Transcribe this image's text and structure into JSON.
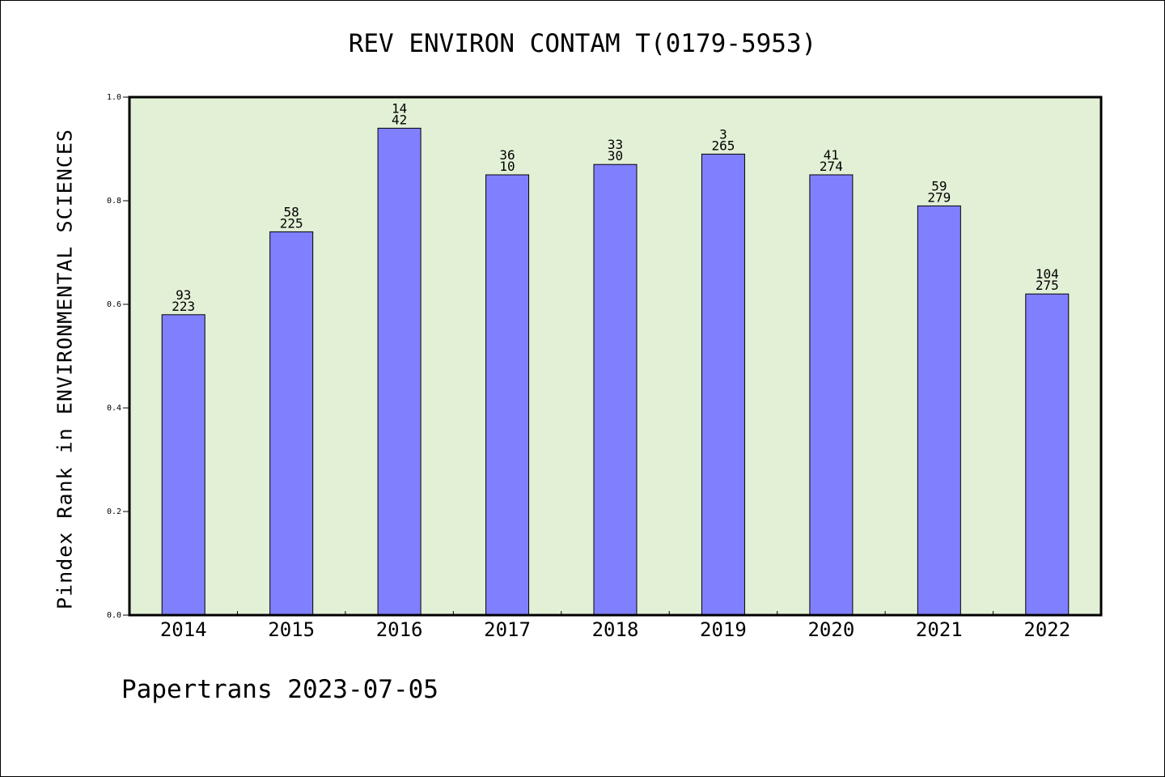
{
  "chart_data": {
    "type": "bar",
    "title": "REV ENVIRON CONTAM T(0179-5953)",
    "ylabel": "Pindex Rank in ENVIRONMENTAL SCIENCES",
    "xlabel": "",
    "categories": [
      "2014",
      "2015",
      "2016",
      "2017",
      "2018",
      "2019",
      "2020",
      "2021",
      "2022"
    ],
    "values": [
      0.58,
      0.74,
      0.94,
      0.85,
      0.87,
      0.89,
      0.85,
      0.79,
      0.62
    ],
    "labels_top": [
      "93",
      "58",
      "14",
      "36",
      "33",
      "3",
      "41",
      "59",
      "104"
    ],
    "labels_bottom": [
      "223",
      "225",
      "42",
      "10",
      "30",
      "265",
      "274",
      "279",
      "275"
    ],
    "ylim": [
      0,
      1.0
    ],
    "yticks": [
      "0.0",
      "0.2",
      "0.4",
      "0.6",
      "0.8",
      "1.0"
    ],
    "grid": false,
    "colors": {
      "bar": "#8080ff",
      "plot_background": "#e2f0d6"
    }
  },
  "footer": "Papertrans 2023-07-05"
}
